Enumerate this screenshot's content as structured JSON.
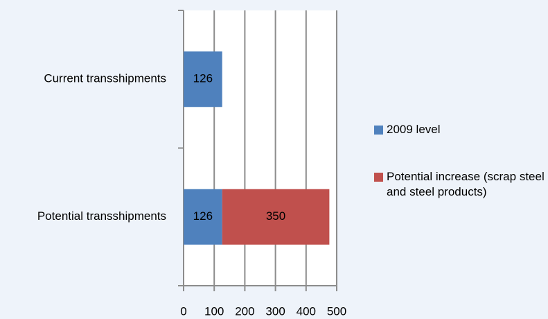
{
  "chart_data": {
    "type": "stacked-bar-horizontal",
    "categories": [
      "Current transshipments",
      "Potential transshipments"
    ],
    "series": [
      {
        "name": "2009 level",
        "color": "#4f81bd",
        "values": [
          126,
          126
        ]
      },
      {
        "name": "Potential increase (scrap steel and steel products)",
        "color": "#c0504d",
        "values": [
          null,
          350
        ]
      }
    ],
    "xlim": [
      0,
      500
    ],
    "xticks": [
      0,
      100,
      200,
      300,
      400,
      500
    ],
    "grid": true,
    "legend": "right"
  }
}
